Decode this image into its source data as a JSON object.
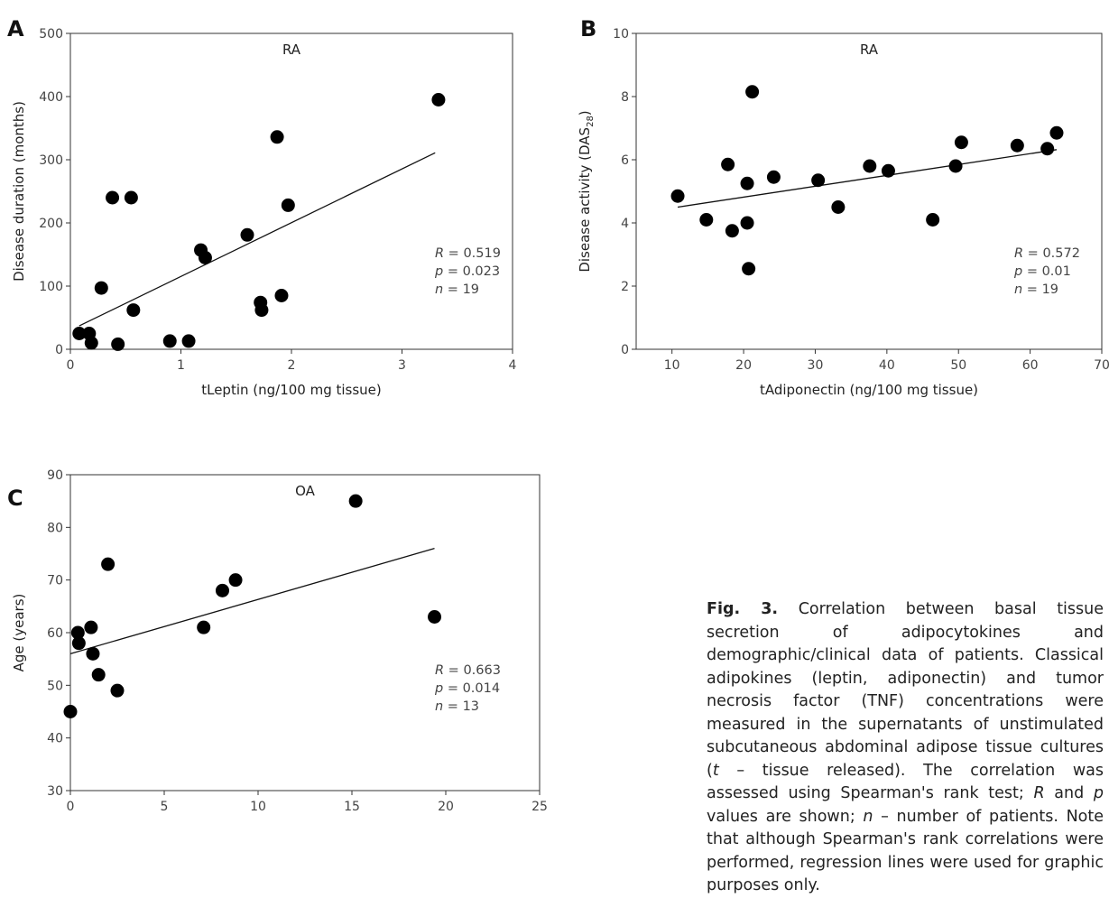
{
  "chart_data": [
    {
      "type": "scatter",
      "panel_letter": "A",
      "title": "RA",
      "xlabel": "tLeptin (ng/100 mg tissue)",
      "ylabel": "Disease duration (months)",
      "xlim": [
        0,
        4
      ],
      "ylim": [
        0,
        500
      ],
      "xticks": [
        "0",
        "1",
        "2",
        "3",
        "4"
      ],
      "yticks": [
        "0",
        "100",
        "200",
        "300",
        "400",
        "500"
      ],
      "points": [
        [
          0.08,
          25
        ],
        [
          0.17,
          25
        ],
        [
          0.19,
          10
        ],
        [
          0.28,
          97
        ],
        [
          0.38,
          240
        ],
        [
          0.43,
          8
        ],
        [
          0.55,
          240
        ],
        [
          0.57,
          62
        ],
        [
          0.9,
          13
        ],
        [
          1.07,
          13
        ],
        [
          1.18,
          157
        ],
        [
          1.22,
          145
        ],
        [
          1.6,
          181
        ],
        [
          1.72,
          74
        ],
        [
          1.73,
          62
        ],
        [
          1.87,
          336
        ],
        [
          1.91,
          85
        ],
        [
          1.97,
          228
        ],
        [
          3.33,
          395
        ]
      ],
      "regression": [
        [
          0.08,
          37
        ],
        [
          3.3,
          311
        ]
      ],
      "stats": {
        "R": "0.519",
        "p": "0.023",
        "n": "19"
      }
    },
    {
      "type": "scatter",
      "panel_letter": "B",
      "title": "RA",
      "xlabel": "tAdiponectin (ng/100 mg tissue)",
      "ylabel": "Disease activity (DAS",
      "ylabel_sub": "28",
      "xlim": [
        5,
        70
      ],
      "ylim": [
        0,
        10
      ],
      "xticks": [
        "10",
        "20",
        "30",
        "40",
        "50",
        "60",
        "70"
      ],
      "yticks": [
        "0",
        "2",
        "4",
        "6",
        "8",
        "10"
      ],
      "points": [
        [
          10.8,
          4.85
        ],
        [
          14.8,
          4.1
        ],
        [
          17.8,
          5.85
        ],
        [
          18.4,
          3.75
        ],
        [
          20.5,
          5.25
        ],
        [
          20.5,
          4.0
        ],
        [
          20.7,
          2.55
        ],
        [
          21.2,
          8.15
        ],
        [
          24.2,
          5.45
        ],
        [
          30.4,
          5.35
        ],
        [
          33.2,
          4.5
        ],
        [
          37.6,
          5.8
        ],
        [
          40.2,
          5.65
        ],
        [
          46.4,
          4.1
        ],
        [
          49.6,
          5.8
        ],
        [
          50.4,
          6.55
        ],
        [
          58.2,
          6.45
        ],
        [
          62.4,
          6.35
        ],
        [
          63.7,
          6.85
        ]
      ],
      "regression": [
        [
          10.8,
          4.5
        ],
        [
          63.7,
          6.32
        ]
      ],
      "stats": {
        "R": "0.572",
        "p": "0.01",
        "n": "19"
      }
    },
    {
      "type": "scatter",
      "panel_letter": "C",
      "title": "OA",
      "xlabel": "tTNF (pg/100 mg tissue)",
      "ylabel": "Age (years)",
      "xlim": [
        0,
        25
      ],
      "ylim": [
        30,
        90
      ],
      "xticks": [
        "0",
        "5",
        "10",
        "15",
        "20",
        "25"
      ],
      "yticks": [
        "30",
        "40",
        "50",
        "60",
        "70",
        "80",
        "90"
      ],
      "points": [
        [
          0.0,
          45
        ],
        [
          0.4,
          60
        ],
        [
          0.45,
          58
        ],
        [
          1.1,
          61
        ],
        [
          1.2,
          56
        ],
        [
          1.5,
          52
        ],
        [
          2.0,
          73
        ],
        [
          2.5,
          49
        ],
        [
          7.1,
          61
        ],
        [
          8.1,
          68
        ],
        [
          8.8,
          70
        ],
        [
          15.2,
          85
        ],
        [
          19.4,
          63
        ]
      ],
      "regression": [
        [
          0.0,
          56
        ],
        [
          19.4,
          76
        ]
      ],
      "stats": {
        "R": "0.663",
        "p": "0.014",
        "n": "13"
      }
    }
  ],
  "stat_labels": {
    "R": "R",
    "p": "p",
    "n": "n",
    "eq": " = "
  },
  "caption": {
    "label": "Fig. 3.",
    "text": " Correlation between basal tissue secretion of adipocytokines and demographic/clinical data of patients. Classical adipokines (leptin, adiponectin) and tumor necrosis factor (TNF) concentrations were measured in the supernatants of unstimulated subcutaneous abdominal adipose tissue cultures (",
    "t_italic": "t",
    "text2": " – tissue released). The correlation was assessed using Spearman's rank test; ",
    "R_italic": "R",
    "and": " and ",
    "p_italic": "p",
    "text3": " values are shown; ",
    "n_italic": "n",
    "text4": " – number of patients. Note that although Spearman's rank correlations were performed, regression lines were used for graphic purposes only."
  }
}
